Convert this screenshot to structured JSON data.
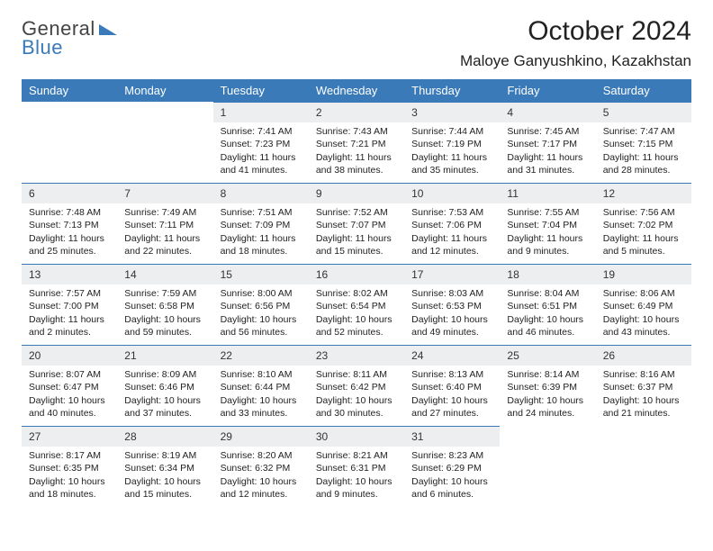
{
  "brand": {
    "word1": "General",
    "word2": "Blue",
    "tri_color": "#3a7ab8"
  },
  "header": {
    "title": "October 2024",
    "location": "Maloye Ganyushkino, Kazakhstan"
  },
  "styles": {
    "header_bg": "#3a7ab8",
    "header_fg": "#ffffff",
    "daynum_bg": "#eceeef",
    "daynum_border": "#3a7ab8",
    "body_font_size": 10.5,
    "title_font_size": 30
  },
  "daynames": [
    "Sunday",
    "Monday",
    "Tuesday",
    "Wednesday",
    "Thursday",
    "Friday",
    "Saturday"
  ],
  "cells": [
    [
      {
        "blank": true
      },
      {
        "blank": true
      },
      {
        "num": "1",
        "sunrise": "Sunrise: 7:41 AM",
        "sunset": "Sunset: 7:23 PM",
        "daylight": "Daylight: 11 hours and 41 minutes."
      },
      {
        "num": "2",
        "sunrise": "Sunrise: 7:43 AM",
        "sunset": "Sunset: 7:21 PM",
        "daylight": "Daylight: 11 hours and 38 minutes."
      },
      {
        "num": "3",
        "sunrise": "Sunrise: 7:44 AM",
        "sunset": "Sunset: 7:19 PM",
        "daylight": "Daylight: 11 hours and 35 minutes."
      },
      {
        "num": "4",
        "sunrise": "Sunrise: 7:45 AM",
        "sunset": "Sunset: 7:17 PM",
        "daylight": "Daylight: 11 hours and 31 minutes."
      },
      {
        "num": "5",
        "sunrise": "Sunrise: 7:47 AM",
        "sunset": "Sunset: 7:15 PM",
        "daylight": "Daylight: 11 hours and 28 minutes."
      }
    ],
    [
      {
        "num": "6",
        "sunrise": "Sunrise: 7:48 AM",
        "sunset": "Sunset: 7:13 PM",
        "daylight": "Daylight: 11 hours and 25 minutes."
      },
      {
        "num": "7",
        "sunrise": "Sunrise: 7:49 AM",
        "sunset": "Sunset: 7:11 PM",
        "daylight": "Daylight: 11 hours and 22 minutes."
      },
      {
        "num": "8",
        "sunrise": "Sunrise: 7:51 AM",
        "sunset": "Sunset: 7:09 PM",
        "daylight": "Daylight: 11 hours and 18 minutes."
      },
      {
        "num": "9",
        "sunrise": "Sunrise: 7:52 AM",
        "sunset": "Sunset: 7:07 PM",
        "daylight": "Daylight: 11 hours and 15 minutes."
      },
      {
        "num": "10",
        "sunrise": "Sunrise: 7:53 AM",
        "sunset": "Sunset: 7:06 PM",
        "daylight": "Daylight: 11 hours and 12 minutes."
      },
      {
        "num": "11",
        "sunrise": "Sunrise: 7:55 AM",
        "sunset": "Sunset: 7:04 PM",
        "daylight": "Daylight: 11 hours and 9 minutes."
      },
      {
        "num": "12",
        "sunrise": "Sunrise: 7:56 AM",
        "sunset": "Sunset: 7:02 PM",
        "daylight": "Daylight: 11 hours and 5 minutes."
      }
    ],
    [
      {
        "num": "13",
        "sunrise": "Sunrise: 7:57 AM",
        "sunset": "Sunset: 7:00 PM",
        "daylight": "Daylight: 11 hours and 2 minutes."
      },
      {
        "num": "14",
        "sunrise": "Sunrise: 7:59 AM",
        "sunset": "Sunset: 6:58 PM",
        "daylight": "Daylight: 10 hours and 59 minutes."
      },
      {
        "num": "15",
        "sunrise": "Sunrise: 8:00 AM",
        "sunset": "Sunset: 6:56 PM",
        "daylight": "Daylight: 10 hours and 56 minutes."
      },
      {
        "num": "16",
        "sunrise": "Sunrise: 8:02 AM",
        "sunset": "Sunset: 6:54 PM",
        "daylight": "Daylight: 10 hours and 52 minutes."
      },
      {
        "num": "17",
        "sunrise": "Sunrise: 8:03 AM",
        "sunset": "Sunset: 6:53 PM",
        "daylight": "Daylight: 10 hours and 49 minutes."
      },
      {
        "num": "18",
        "sunrise": "Sunrise: 8:04 AM",
        "sunset": "Sunset: 6:51 PM",
        "daylight": "Daylight: 10 hours and 46 minutes."
      },
      {
        "num": "19",
        "sunrise": "Sunrise: 8:06 AM",
        "sunset": "Sunset: 6:49 PM",
        "daylight": "Daylight: 10 hours and 43 minutes."
      }
    ],
    [
      {
        "num": "20",
        "sunrise": "Sunrise: 8:07 AM",
        "sunset": "Sunset: 6:47 PM",
        "daylight": "Daylight: 10 hours and 40 minutes."
      },
      {
        "num": "21",
        "sunrise": "Sunrise: 8:09 AM",
        "sunset": "Sunset: 6:46 PM",
        "daylight": "Daylight: 10 hours and 37 minutes."
      },
      {
        "num": "22",
        "sunrise": "Sunrise: 8:10 AM",
        "sunset": "Sunset: 6:44 PM",
        "daylight": "Daylight: 10 hours and 33 minutes."
      },
      {
        "num": "23",
        "sunrise": "Sunrise: 8:11 AM",
        "sunset": "Sunset: 6:42 PM",
        "daylight": "Daylight: 10 hours and 30 minutes."
      },
      {
        "num": "24",
        "sunrise": "Sunrise: 8:13 AM",
        "sunset": "Sunset: 6:40 PM",
        "daylight": "Daylight: 10 hours and 27 minutes."
      },
      {
        "num": "25",
        "sunrise": "Sunrise: 8:14 AM",
        "sunset": "Sunset: 6:39 PM",
        "daylight": "Daylight: 10 hours and 24 minutes."
      },
      {
        "num": "26",
        "sunrise": "Sunrise: 8:16 AM",
        "sunset": "Sunset: 6:37 PM",
        "daylight": "Daylight: 10 hours and 21 minutes."
      }
    ],
    [
      {
        "num": "27",
        "sunrise": "Sunrise: 8:17 AM",
        "sunset": "Sunset: 6:35 PM",
        "daylight": "Daylight: 10 hours and 18 minutes."
      },
      {
        "num": "28",
        "sunrise": "Sunrise: 8:19 AM",
        "sunset": "Sunset: 6:34 PM",
        "daylight": "Daylight: 10 hours and 15 minutes."
      },
      {
        "num": "29",
        "sunrise": "Sunrise: 8:20 AM",
        "sunset": "Sunset: 6:32 PM",
        "daylight": "Daylight: 10 hours and 12 minutes."
      },
      {
        "num": "30",
        "sunrise": "Sunrise: 8:21 AM",
        "sunset": "Sunset: 6:31 PM",
        "daylight": "Daylight: 10 hours and 9 minutes."
      },
      {
        "num": "31",
        "sunrise": "Sunrise: 8:23 AM",
        "sunset": "Sunset: 6:29 PM",
        "daylight": "Daylight: 10 hours and 6 minutes."
      },
      {
        "blank": true
      },
      {
        "blank": true
      }
    ]
  ]
}
